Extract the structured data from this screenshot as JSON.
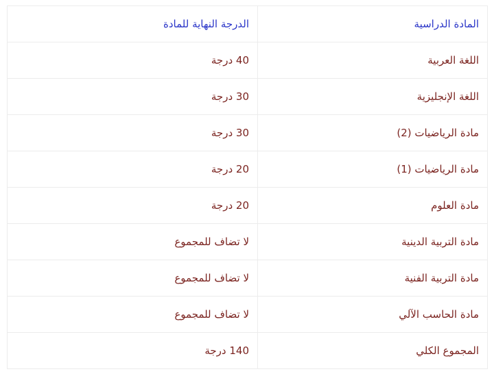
{
  "table": {
    "headers": [
      "المادة الدراسية",
      "الدرجة النهاية للمادة"
    ],
    "rows": [
      [
        "اللغة العربية",
        "40 درجة"
      ],
      [
        "اللغة الإنجليزية",
        "30 درجة"
      ],
      [
        "مادة الرياضيات (2)",
        "30 درجة"
      ],
      [
        "مادة الرياضيات (1)",
        "20 درجة"
      ],
      [
        "مادة العلوم",
        "20 درجة"
      ],
      [
        "مادة التربية الدينية",
        "لا تضاف للمجموع"
      ],
      [
        "مادة التربية الفنية",
        "لا تضاف للمجموع"
      ],
      [
        "مادة الحاسب الآلي",
        "لا تضاف للمجموع"
      ],
      [
        "المجموع الكلي",
        "140 درجة"
      ]
    ]
  },
  "colors": {
    "header_text": "#2a35c8",
    "body_text": "#7b2420",
    "border": "#ececec"
  }
}
